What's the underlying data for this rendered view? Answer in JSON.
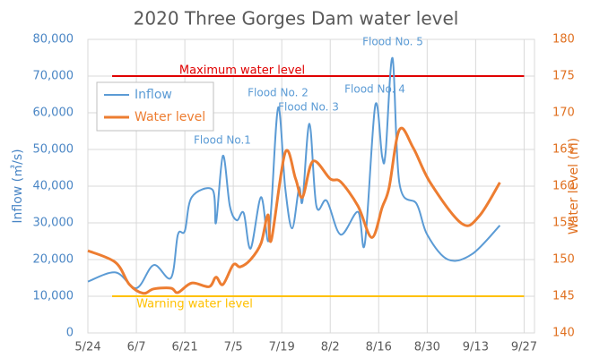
{
  "chart_data": {
    "type": "line",
    "title": "2020 Three Gorges Dam water level",
    "y_label": "Inflow (㎥/s)",
    "y2_label": "Water level (m)",
    "grid": true,
    "legend": "upper left",
    "xlim": [
      "5/24",
      "9/30"
    ],
    "xticks": [
      "5/24",
      "6/7",
      "6/21",
      "7/5",
      "7/19",
      "8/2",
      "8/16",
      "8/30",
      "9/13",
      "9/27"
    ],
    "ylim": [
      0,
      80000
    ],
    "yticks": [
      0,
      {
        "value": 10000,
        "label": "10,000"
      },
      {
        "value": 20000,
        "label": "20,000"
      },
      {
        "value": 30000,
        "label": "30,000"
      },
      {
        "value": 40000,
        "label": "40,000"
      },
      {
        "value": 50000,
        "label": "50,000"
      },
      {
        "value": 60000,
        "label": "60,000"
      },
      {
        "value": 70000,
        "label": "70,000"
      },
      {
        "value": 80000,
        "label": "80,000"
      }
    ],
    "y2lim": [
      140,
      180
    ],
    "y2ticks": [
      140,
      145,
      150,
      155,
      160,
      165,
      170,
      175,
      180
    ],
    "series": [
      {
        "name": "Inflow",
        "color": "#5b9bd5",
        "x": [
          "5/24",
          "6/1",
          "6/7",
          "6/12",
          "6/17",
          "6/19",
          "6/21",
          "6/23",
          "6/29",
          "6/30",
          "7/2",
          "7/4",
          "7/6",
          "7/8",
          "7/10",
          "7/13",
          "7/15",
          "7/16",
          "7/18",
          "7/20",
          "7/22",
          "7/24",
          "7/25",
          "7/27",
          "7/29",
          "8/1",
          "8/5",
          "8/10",
          "8/12",
          "8/15",
          "8/17",
          "8/18",
          "8/20",
          "8/22",
          "8/27",
          "8/30",
          "9/5",
          "9/12",
          "9/20"
        ],
        "values": [
          14000,
          16500,
          12200,
          18500,
          15000,
          26800,
          27800,
          37000,
          39000,
          30000,
          48300,
          34600,
          30700,
          32700,
          23000,
          37000,
          25000,
          34600,
          61500,
          39500,
          28500,
          39500,
          36000,
          57000,
          34600,
          36000,
          26800,
          33000,
          24400,
          62000,
          48000,
          49300,
          74900,
          40700,
          35100,
          26800,
          20000,
          21500,
          29300
        ]
      },
      {
        "name": "Water level",
        "color": "#ed7d31",
        "axis": "y2",
        "x": [
          "5/24",
          "6/1",
          "6/5",
          "6/9",
          "6/12",
          "6/17",
          "6/19",
          "6/23",
          "6/28",
          "6/30",
          "7/2",
          "7/5",
          "7/7",
          "7/10",
          "7/13",
          "7/15",
          "7/16",
          "7/20",
          "7/23",
          "7/25",
          "7/28",
          "8/2",
          "8/5",
          "8/10",
          "8/14",
          "8/17",
          "8/19",
          "8/22",
          "8/26",
          "8/31",
          "9/9",
          "9/14",
          "9/20"
        ],
        "values": [
          151.2,
          149.6,
          146.6,
          145.4,
          146.0,
          146.1,
          145.5,
          146.8,
          146.3,
          147.6,
          146.6,
          149.3,
          149.0,
          150.0,
          152.2,
          156.1,
          152.7,
          164.6,
          161.0,
          158.5,
          163.4,
          161.0,
          160.6,
          157.3,
          153.0,
          157.1,
          159.8,
          167.7,
          165.2,
          160.4,
          154.9,
          155.9,
          160.5
        ]
      }
    ],
    "reference_lines": [
      {
        "label": "Maximum water level",
        "value": 175,
        "color": "#e00000",
        "x": [
          "5/31",
          "9/27"
        ]
      },
      {
        "label": "Warning water level",
        "value": 145,
        "color": "#ffc000",
        "x": [
          "5/31",
          "9/27"
        ]
      }
    ],
    "annotations": [
      "Flood No.1",
      "Flood No. 2",
      "Flood No. 3",
      "Flood No. 4",
      "Flood No. 5"
    ]
  }
}
